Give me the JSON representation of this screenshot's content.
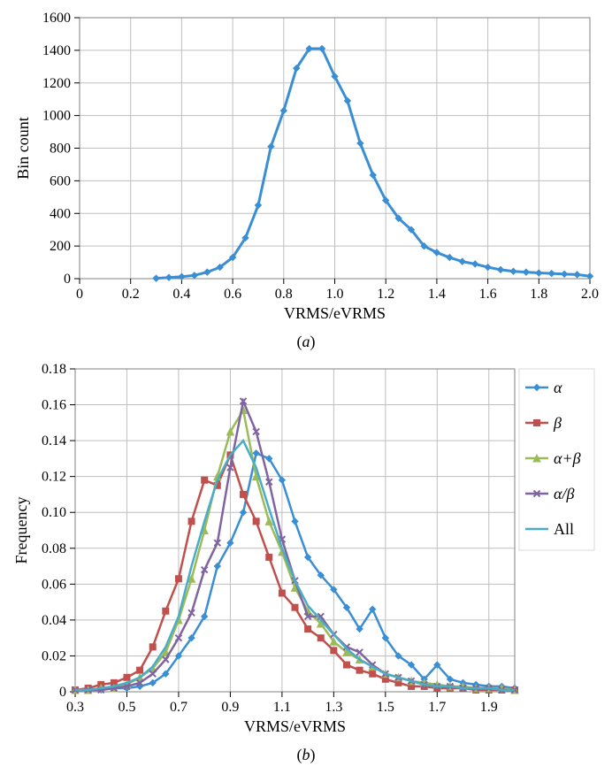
{
  "chart_a": {
    "type": "line",
    "caption": "(a)",
    "xlabel": "VRMS/eVRMS",
    "ylabel": "Bin count",
    "label_fontsize": 18,
    "tick_fontsize": 16,
    "xlim": [
      0,
      2.0
    ],
    "ylim": [
      0,
      1600
    ],
    "xticks": [
      0,
      0.2,
      0.4,
      0.6,
      0.8,
      1.0,
      1.2,
      1.4,
      1.6,
      1.8,
      2.0
    ],
    "yticks": [
      0,
      200,
      400,
      600,
      800,
      1000,
      1200,
      1400,
      1600
    ],
    "background_color": "#ffffff",
    "grid_color": "#bfbfbf",
    "border_color": "#808080",
    "grid_width": 1,
    "series": {
      "color": "#3a8ed4",
      "marker": "diamond",
      "marker_size": 7,
      "line_width": 3,
      "x": [
        0.3,
        0.35,
        0.4,
        0.45,
        0.5,
        0.55,
        0.6,
        0.65,
        0.7,
        0.75,
        0.8,
        0.85,
        0.9,
        0.95,
        1.0,
        1.05,
        1.1,
        1.15,
        1.2,
        1.25,
        1.3,
        1.35,
        1.4,
        1.45,
        1.5,
        1.55,
        1.6,
        1.65,
        1.7,
        1.75,
        1.8,
        1.85,
        1.9,
        1.95,
        2.0
      ],
      "y": [
        2,
        7,
        12,
        20,
        40,
        70,
        130,
        250,
        450,
        810,
        1030,
        1290,
        1410,
        1410,
        1240,
        1090,
        830,
        635,
        480,
        370,
        300,
        200,
        160,
        130,
        105,
        90,
        70,
        55,
        45,
        40,
        35,
        32,
        28,
        25,
        15
      ]
    }
  },
  "chart_b": {
    "type": "line",
    "caption": "(b)",
    "xlabel": "VRMS/eVRMS",
    "ylabel": "Frequency",
    "label_fontsize": 18,
    "tick_fontsize": 16,
    "xlim": [
      0.3,
      2.0
    ],
    "ylim": [
      0,
      0.18
    ],
    "xticks": [
      0.3,
      0.5,
      0.7,
      0.9,
      1.1,
      1.3,
      1.5,
      1.7,
      1.9
    ],
    "yticks": [
      0,
      0.02,
      0.04,
      0.06,
      0.08,
      0.1,
      0.12,
      0.14,
      0.16,
      0.18
    ],
    "background_color": "#ffffff",
    "grid_color": "#bfbfbf",
    "border_color": "#808080",
    "grid_width": 1,
    "legend": {
      "position": "right",
      "fontsize": 18,
      "font_style": "italic",
      "border_color": "#d9d9d9"
    },
    "x": [
      0.3,
      0.35,
      0.4,
      0.45,
      0.5,
      0.55,
      0.6,
      0.65,
      0.7,
      0.75,
      0.8,
      0.85,
      0.9,
      0.95,
      1.0,
      1.05,
      1.1,
      1.15,
      1.2,
      1.25,
      1.3,
      1.35,
      1.4,
      1.45,
      1.5,
      1.55,
      1.6,
      1.65,
      1.7,
      1.75,
      1.8,
      1.85,
      1.9,
      1.95,
      2.0
    ],
    "series": [
      {
        "name": "alpha",
        "label": "α",
        "color": "#3a8ed4",
        "marker": "diamond",
        "marker_size": 7,
        "line_width": 2.5,
        "y": [
          0.001,
          0.001,
          0.001,
          0.002,
          0.002,
          0.003,
          0.005,
          0.01,
          0.02,
          0.03,
          0.042,
          0.07,
          0.083,
          0.1,
          0.133,
          0.13,
          0.118,
          0.095,
          0.075,
          0.065,
          0.057,
          0.047,
          0.035,
          0.046,
          0.03,
          0.02,
          0.015,
          0.007,
          0.015,
          0.007,
          0.005,
          0.004,
          0.003,
          0.003,
          0.002
        ]
      },
      {
        "name": "beta",
        "label": "β",
        "color": "#c0504d",
        "marker": "square",
        "marker_size": 7,
        "line_width": 2.5,
        "y": [
          0.001,
          0.002,
          0.004,
          0.005,
          0.008,
          0.012,
          0.025,
          0.045,
          0.063,
          0.095,
          0.118,
          0.115,
          0.132,
          0.11,
          0.095,
          0.075,
          0.055,
          0.047,
          0.035,
          0.03,
          0.023,
          0.015,
          0.012,
          0.01,
          0.007,
          0.005,
          0.003,
          0.003,
          0.002,
          0.002,
          0.002,
          0.001,
          0.001,
          0.001,
          0.001
        ]
      },
      {
        "name": "alpha_plus_beta",
        "label": "α+β",
        "color": "#9bbb59",
        "marker": "triangle",
        "marker_size": 8,
        "line_width": 2.5,
        "y": [
          0.001,
          0.001,
          0.002,
          0.002,
          0.004,
          0.008,
          0.013,
          0.022,
          0.04,
          0.063,
          0.09,
          0.12,
          0.145,
          0.157,
          0.12,
          0.095,
          0.078,
          0.058,
          0.045,
          0.038,
          0.028,
          0.022,
          0.018,
          0.014,
          0.01,
          0.008,
          0.006,
          0.005,
          0.004,
          0.003,
          0.003,
          0.002,
          0.002,
          0.002,
          0.001
        ]
      },
      {
        "name": "alpha_over_beta",
        "label": "α/β",
        "color": "#8064a2",
        "marker": "x",
        "marker_size": 7,
        "line_width": 2.5,
        "y": [
          0.001,
          0.001,
          0.001,
          0.002,
          0.003,
          0.005,
          0.01,
          0.018,
          0.03,
          0.044,
          0.068,
          0.083,
          0.125,
          0.162,
          0.145,
          0.117,
          0.085,
          0.062,
          0.042,
          0.042,
          0.032,
          0.025,
          0.022,
          0.015,
          0.01,
          0.008,
          0.006,
          0.004,
          0.003,
          0.003,
          0.002,
          0.002,
          0.002,
          0.001,
          0.001
        ]
      },
      {
        "name": "all",
        "label": "All",
        "color": "#4bacc6",
        "marker": "none",
        "marker_size": 0,
        "line_width": 2.5,
        "y": [
          0.001,
          0.001,
          0.002,
          0.003,
          0.005,
          0.008,
          0.014,
          0.025,
          0.042,
          0.07,
          0.095,
          0.118,
          0.132,
          0.14,
          0.125,
          0.102,
          0.08,
          0.062,
          0.048,
          0.04,
          0.032,
          0.024,
          0.018,
          0.014,
          0.01,
          0.008,
          0.006,
          0.004,
          0.003,
          0.003,
          0.002,
          0.002,
          0.002,
          0.001,
          0.001
        ]
      }
    ]
  }
}
